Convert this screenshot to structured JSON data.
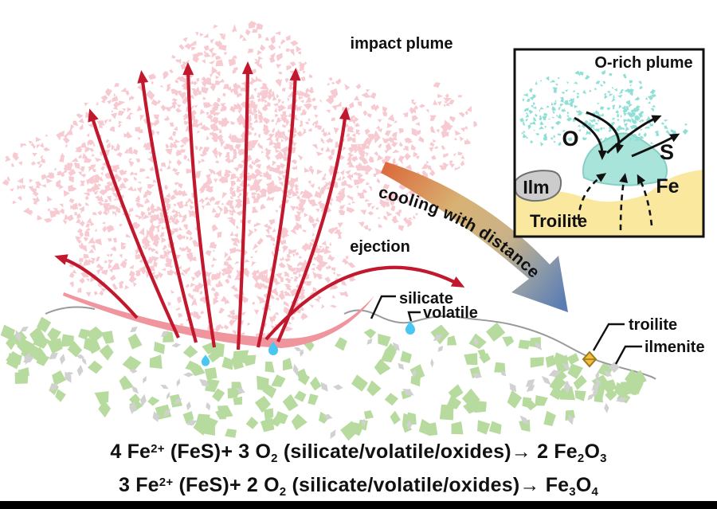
{
  "labels": {
    "impact_plume": "impact plume",
    "ejection": "ejection",
    "silicate": "silicate",
    "volatile": "volatile",
    "troilite": "troilite",
    "ilmenite": "ilmenite",
    "cooling": "cooling with distance"
  },
  "inset": {
    "title": "O-rich plume",
    "o": "O",
    "s": "S",
    "ilm": "Ilm",
    "fe": "Fe",
    "troilite": "Troilite"
  },
  "equations": [
    {
      "text": "4 Fe^{2+} (FeS)+ 3 O_{2} (silicate/volatile/oxides)→ 2 Fe_{2}O_{3}"
    },
    {
      "text": "3 Fe^{2+} (FeS)+ 2 O_{2} (silicate/volatile/oxides)→ Fe_{3}O_{4}"
    }
  ],
  "colors": {
    "plume_particle": "#f6cad0",
    "arrow_red": "#c2182d",
    "ejecta_band": "#f0949e",
    "ground_green": "#b7db9f",
    "ground_gray": "#d1d1d1",
    "surface_line": "#9a9a9a",
    "droplet_blue": "#49c6f2",
    "troilite_gold": "#f4bd3b",
    "troilite_stroke": "#9c7a1e",
    "inset_teal_particle": "#8fdfd6",
    "inset_blob": "#a9e4db",
    "inset_blob_stroke": "#87cfc5",
    "inset_yellow": "#f9e89e",
    "inset_gray": "#cccccc",
    "inset_gray_stroke": "#707070",
    "cooling_start": "#db6d3d",
    "cooling_mid": "#d8b274",
    "cooling_mid2": "#c9b287",
    "cooling_mid3": "#8f9ba8",
    "cooling_end": "#5b7db3",
    "label_black": "#111111"
  }
}
